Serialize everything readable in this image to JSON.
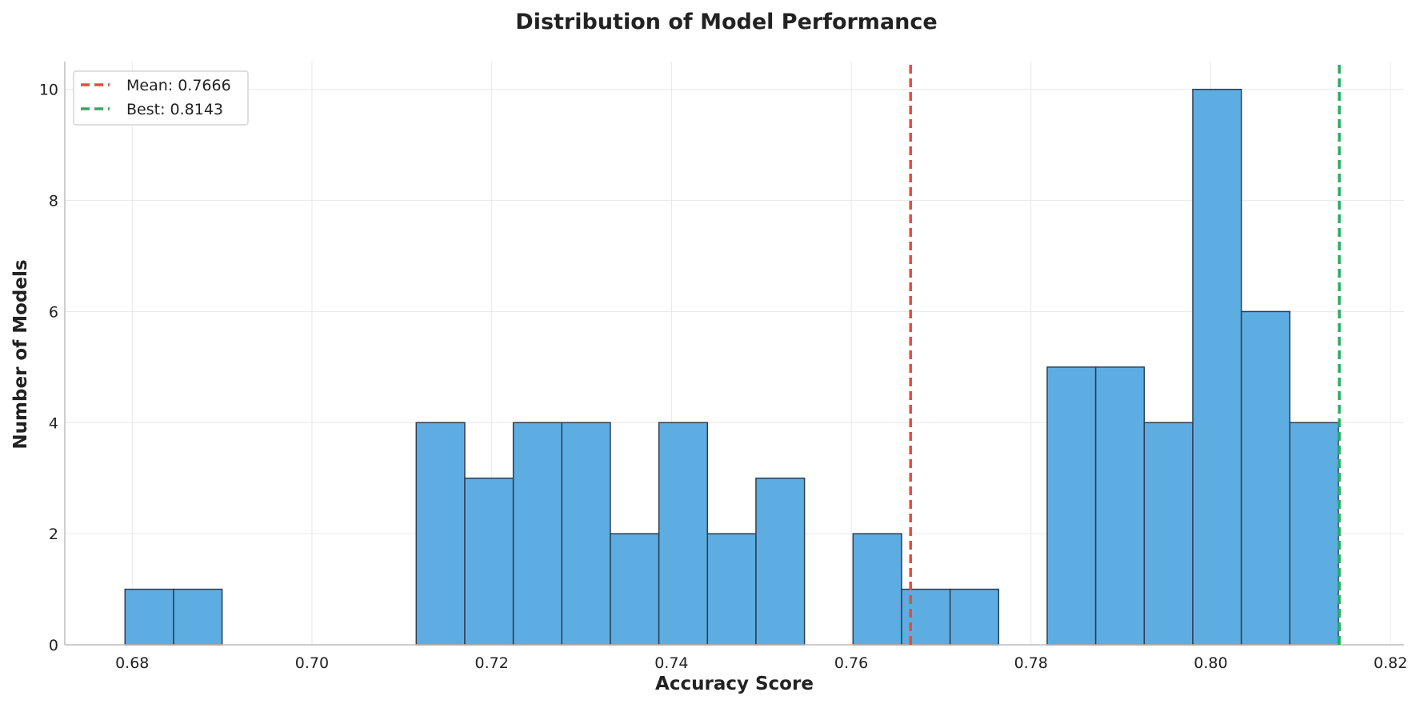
{
  "chart_data": {
    "type": "bar",
    "subtype": "histogram",
    "title": "Distribution of Model Performance",
    "xlabel": "Accuracy Score",
    "ylabel": "Number of Models",
    "xlim": [
      0.6725,
      0.8215
    ],
    "ylim": [
      0,
      10.5
    ],
    "xticks": [
      0.68,
      0.7,
      0.72,
      0.74,
      0.76,
      0.78,
      0.8,
      0.82
    ],
    "xtick_labels": [
      "0.68",
      "0.70",
      "0.72",
      "0.74",
      "0.76",
      "0.78",
      "0.80",
      "0.82"
    ],
    "yticks": [
      0,
      2,
      4,
      6,
      8,
      10
    ],
    "ytick_labels": [
      "0",
      "2",
      "4",
      "6",
      "8",
      "10"
    ],
    "bin_start": 0.6792,
    "bin_width": 0.0054,
    "counts": [
      1,
      1,
      0,
      0,
      0,
      0,
      4,
      3,
      4,
      4,
      2,
      4,
      2,
      3,
      0,
      2,
      1,
      1,
      0,
      5,
      5,
      4,
      10,
      6,
      4
    ],
    "grid": true,
    "legend_position": "upper-left",
    "bar_color": "#5DADE2",
    "bar_edge_color": "#2C3E50",
    "reference_lines": [
      {
        "label": "Mean: 0.7666",
        "x": 0.7666,
        "color": "#E74C3C",
        "style": "dashed"
      },
      {
        "label": "Best: 0.8143",
        "x": 0.8143,
        "color": "#27AE60",
        "style": "dashed"
      }
    ]
  }
}
